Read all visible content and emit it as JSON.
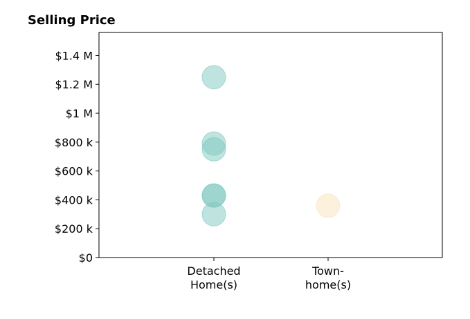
{
  "chart_data": {
    "type": "scatter",
    "title": "Selling Price",
    "xlabel": "",
    "ylabel": "",
    "categories": [
      [
        "Detached",
        "Home(s)"
      ],
      [
        "Town-",
        "home(s)"
      ]
    ],
    "ylim": [
      0,
      1560000
    ],
    "yticks": [
      0,
      200000,
      400000,
      600000,
      800000,
      1000000,
      1200000,
      1400000
    ],
    "ytick_labels": [
      "$0",
      "$200 k",
      "$400 k",
      "$600 k",
      "$800 k",
      "$1 M",
      "$1.2 M",
      "$1.4 M"
    ],
    "grid": false,
    "legend": "none",
    "series": [
      {
        "category": 0,
        "color": "#7fc7bf",
        "values": [
          1250000,
          790000,
          750000,
          430000,
          430000,
          300000
        ]
      },
      {
        "category": 1,
        "color": "#f7e3ba",
        "values": [
          360000
        ]
      }
    ]
  }
}
